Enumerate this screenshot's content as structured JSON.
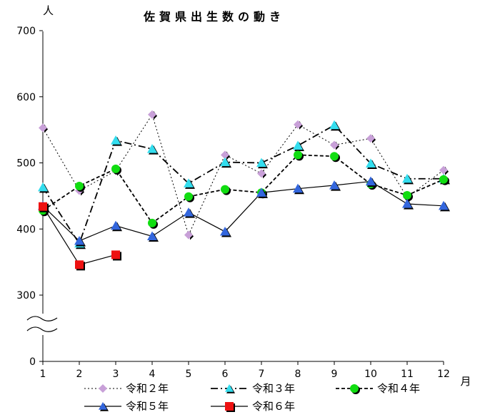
{
  "chart_data": {
    "type": "line",
    "title": "佐賀県出生数の動き",
    "ylabel": "人",
    "xlabel": "月",
    "categories": [
      "1",
      "2",
      "3",
      "4",
      "5",
      "6",
      "7",
      "8",
      "9",
      "10",
      "11",
      "12"
    ],
    "yticks": [
      "700",
      "600",
      "500",
      "400",
      "300",
      "0"
    ],
    "ylim": [
      0,
      700
    ],
    "axis_break": true,
    "grid": false,
    "legend_position": "bottom",
    "series": [
      {
        "name": "令和２年",
        "color": "#c8a0d8",
        "marker": "diamond",
        "dash": "dot",
        "values": [
          553,
          458,
          488,
          573,
          391,
          512,
          484,
          558,
          527,
          537,
          448,
          489
        ]
      },
      {
        "name": "令和３年",
        "color": "#33ddee",
        "marker": "triangle",
        "dash": "dashdot",
        "values": [
          463,
          378,
          534,
          521,
          469,
          501,
          500,
          526,
          557,
          499,
          476,
          476
        ]
      },
      {
        "name": "令和４年",
        "color": "#11dd11",
        "marker": "circle",
        "dash": "dash",
        "values": [
          428,
          465,
          491,
          409,
          449,
          460,
          455,
          512,
          510,
          468,
          451,
          475
        ]
      },
      {
        "name": "令和５年",
        "color": "#3366dd",
        "marker": "triangle",
        "dash": "solid",
        "values": [
          435,
          382,
          405,
          389,
          425,
          396,
          455,
          461,
          466,
          472,
          438,
          435
        ]
      },
      {
        "name": "令和６年",
        "color": "#ee1111",
        "marker": "square",
        "dash": "solid",
        "values": [
          434,
          346,
          361,
          null,
          null,
          null,
          null,
          null,
          null,
          null,
          null,
          null
        ]
      }
    ]
  }
}
